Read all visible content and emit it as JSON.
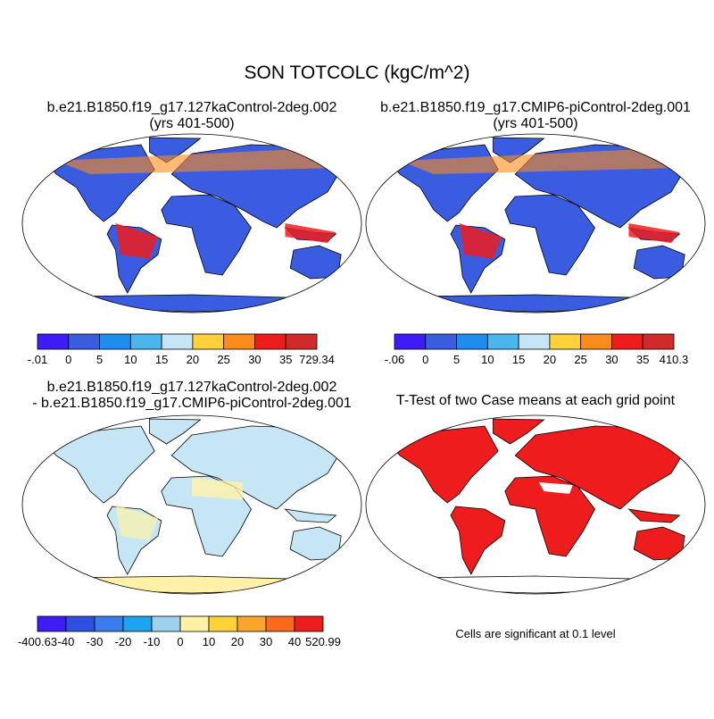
{
  "title": "SON TOTCOLC (kgC/m^2)",
  "panels": [
    {
      "title_lines": [
        "b.e21.B1850.f19_g17.127kaControl-2deg.002",
        "(yrs 401-500)"
      ],
      "colorbar": {
        "colors": [
          "#3d1cf5",
          "#3a5ce0",
          "#1d8ef0",
          "#4bb6ee",
          "#c6e6f5",
          "#fcd13a",
          "#fb8c1c",
          "#ee1c1c",
          "#d12a2a"
        ],
        "labels": [
          "-.01",
          "0",
          "5",
          "10",
          "15",
          "20",
          "25",
          "30",
          "35",
          "729.34"
        ]
      }
    },
    {
      "title_lines": [
        "b.e21.B1850.f19_g17.CMIP6-piControl-2deg.001",
        "(yrs 401-500)"
      ],
      "colorbar": {
        "colors": [
          "#3d1cf5",
          "#3a5ce0",
          "#1d8ef0",
          "#4bb6ee",
          "#c6e6f5",
          "#fcd13a",
          "#fb8c1c",
          "#ee1c1c",
          "#d12a2a"
        ],
        "labels": [
          "-.06",
          "0",
          "5",
          "10",
          "15",
          "20",
          "25",
          "30",
          "35",
          "410.3"
        ]
      }
    },
    {
      "title_lines": [
        "b.e21.B1850.f19_g17.127kaControl-2deg.002",
        "- b.e21.B1850.f19_g17.CMIP6-piControl-2deg.001"
      ],
      "colorbar": {
        "colors": [
          "#3d1cf5",
          "#2f4fe0",
          "#3a7cee",
          "#1da3f0",
          "#9ed2ec",
          "#fff2a8",
          "#fcd13a",
          "#fba52a",
          "#fb6a1c",
          "#ee1c1c"
        ],
        "labels": [
          "-400.63",
          "-40",
          "-30",
          "-20",
          "-10",
          "0",
          "10",
          "20",
          "30",
          "40",
          "520.99"
        ]
      }
    },
    {
      "title_lines": [
        "T-Test of two Case means at each grid point"
      ],
      "note": "Cells are significant at 0.1 level"
    }
  ]
}
